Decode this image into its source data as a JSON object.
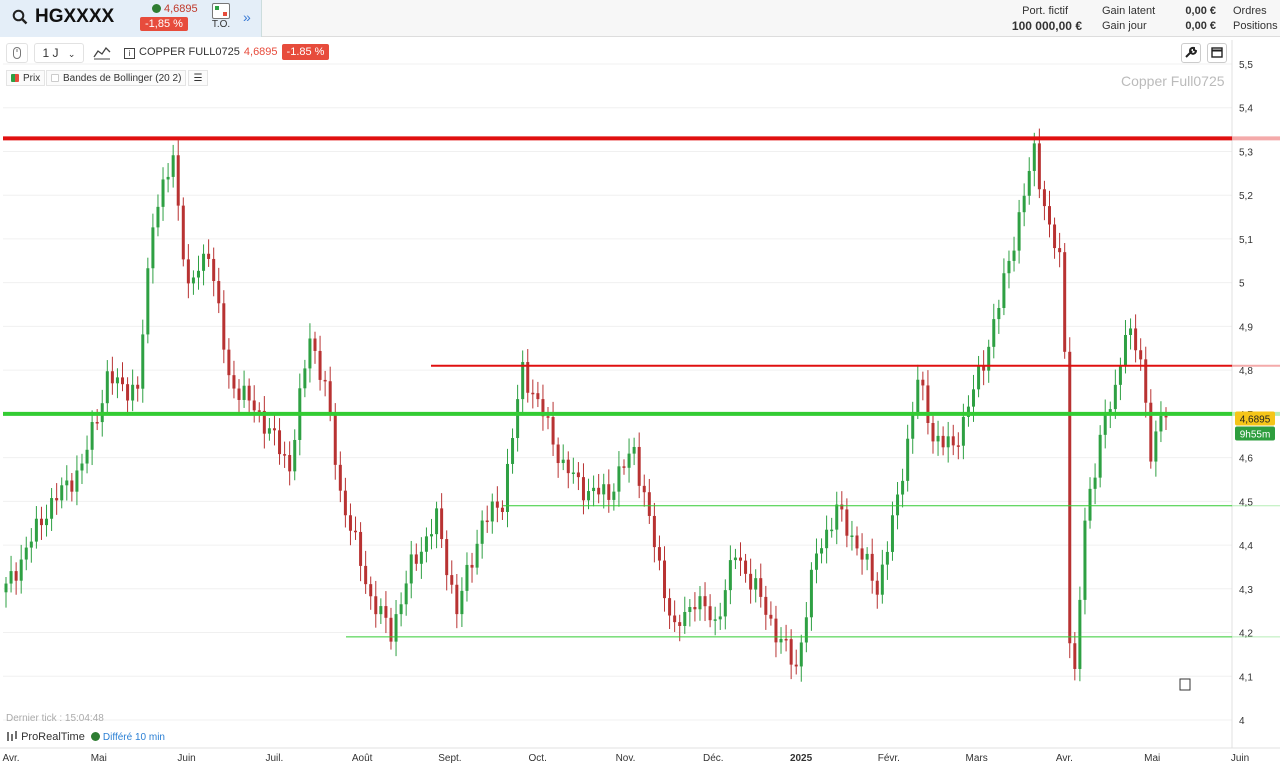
{
  "header": {
    "ticker": "HGXXXX",
    "price": "4,6895",
    "change": "-1,85 %",
    "to_label": "T.O.",
    "portfolio_label": "Port. fictif",
    "portfolio_value": "100 000,00 €",
    "gain_latent_label": "Gain latent",
    "gain_jour_label": "Gain jour",
    "gain_latent_value": "0,00 €",
    "gain_jour_value": "0,00 €",
    "orders_label": "Ordres",
    "positions_label": "Positions"
  },
  "toolbar": {
    "period": "1 J",
    "instrument": "COPPER FULL0725",
    "price": "4,6895",
    "change": "-1.85 %"
  },
  "legend": {
    "prix": "Prix",
    "bollinger": "Bandes de Bollinger (20 2)"
  },
  "watermark": "Copper Full0725",
  "footer": {
    "last_tick": "Dernier tick : 15:04:48",
    "brand": "ProRealTime",
    "delayed": "Différé 10 min"
  },
  "colors": {
    "up": "#2ea043",
    "down": "#b83232",
    "resistance": "#e01010",
    "support": "#33cc33",
    "price_tag": "#f5c518",
    "timer_tag": "#2e9e3e"
  },
  "chart_data": {
    "type": "candlestick",
    "ylim": [
      4.0,
      5.5
    ],
    "y_ticks": [
      "5,5",
      "5,4",
      "5,3",
      "5,2",
      "5,1",
      "5",
      "4,9",
      "4,8",
      "4,7",
      "4,6",
      "4,5",
      "4,4",
      "4,3",
      "4,2",
      "4,1",
      "4"
    ],
    "x_labels": [
      "Avr.",
      "Mai",
      "Juin",
      "Juil.",
      "Août",
      "Sept.",
      "Oct.",
      "Nov.",
      "Déc.",
      "2025",
      "Févr.",
      "Mars",
      "Avr.",
      "Mai",
      "Juin"
    ],
    "last_price_tag": "4,6895",
    "timer_tag": "9h55m",
    "horizontal_lines": [
      {
        "price": 5.33,
        "color": "resistance",
        "width": 4
      },
      {
        "price": 4.81,
        "color": "resistance",
        "width": 2
      },
      {
        "price": 4.7,
        "color": "support",
        "width": 4
      },
      {
        "price": 4.49,
        "color": "support",
        "width": 1
      },
      {
        "price": 4.19,
        "color": "support",
        "width": 1
      }
    ],
    "anchors": [
      [
        0,
        4.3
      ],
      [
        8,
        4.48
      ],
      [
        15,
        4.58
      ],
      [
        20,
        4.78
      ],
      [
        26,
        4.75
      ],
      [
        29,
        5.15
      ],
      [
        33,
        5.28
      ],
      [
        36,
        4.98
      ],
      [
        40,
        5.08
      ],
      [
        44,
        4.78
      ],
      [
        50,
        4.7
      ],
      [
        56,
        4.58
      ],
      [
        60,
        4.88
      ],
      [
        63,
        4.76
      ],
      [
        66,
        4.52
      ],
      [
        72,
        4.28
      ],
      [
        76,
        4.2
      ],
      [
        80,
        4.35
      ],
      [
        85,
        4.46
      ],
      [
        89,
        4.25
      ],
      [
        94,
        4.45
      ],
      [
        98,
        4.5
      ],
      [
        102,
        4.8
      ],
      [
        106,
        4.7
      ],
      [
        110,
        4.58
      ],
      [
        115,
        4.52
      ],
      [
        119,
        4.52
      ],
      [
        124,
        4.62
      ],
      [
        128,
        4.4
      ],
      [
        132,
        4.2
      ],
      [
        136,
        4.28
      ],
      [
        140,
        4.22
      ],
      [
        144,
        4.38
      ],
      [
        148,
        4.3
      ],
      [
        152,
        4.2
      ],
      [
        156,
        4.12
      ],
      [
        160,
        4.38
      ],
      [
        164,
        4.48
      ],
      [
        168,
        4.4
      ],
      [
        172,
        4.3
      ],
      [
        176,
        4.5
      ],
      [
        180,
        4.78
      ],
      [
        183,
        4.65
      ],
      [
        187,
        4.62
      ],
      [
        190,
        4.72
      ],
      [
        193,
        4.82
      ],
      [
        196,
        4.95
      ],
      [
        200,
        5.15
      ],
      [
        203,
        5.3
      ],
      [
        206,
        5.12
      ],
      [
        208,
        5.05
      ],
      [
        209,
        4.85
      ],
      [
        210,
        4.2
      ],
      [
        211,
        4.1
      ],
      [
        213,
        4.45
      ],
      [
        216,
        4.65
      ],
      [
        219,
        4.75
      ],
      [
        221,
        4.9
      ],
      [
        224,
        4.82
      ],
      [
        226,
        4.62
      ],
      [
        228,
        4.68
      ],
      [
        229,
        4.7
      ]
    ]
  }
}
